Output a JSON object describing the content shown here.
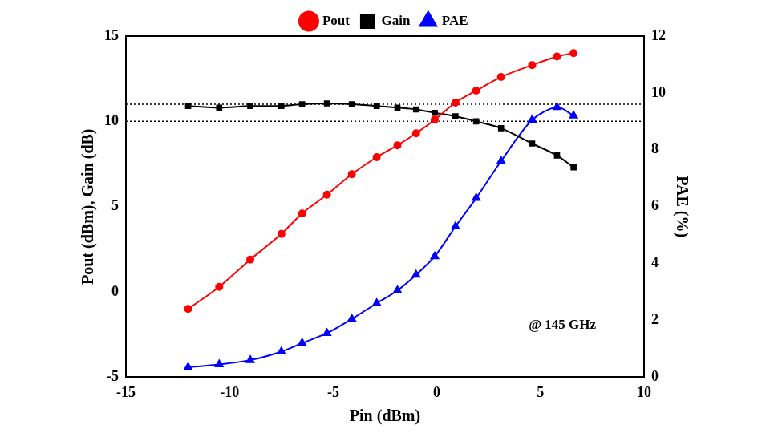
{
  "chart_data": {
    "type": "line",
    "x_label": "Pin (dBm)",
    "y_label": "Pout (dBm), Gain (dB)",
    "y2_label": "PAE (%)",
    "annotation": "@ 145 GHz",
    "x": [
      -12,
      -10.5,
      -9,
      -7.5,
      -6.5,
      -5.3,
      -4.1,
      -2.9,
      -1.9,
      -1.0,
      -0.1,
      0.9,
      1.9,
      3.1,
      4.6,
      5.8,
      6.6
    ],
    "series": [
      {
        "name": "Pout",
        "color": "#ff0000",
        "marker": "circle",
        "axis": "y",
        "values": [
          -1.0,
          0.3,
          1.9,
          3.4,
          4.6,
          5.7,
          6.9,
          7.9,
          8.6,
          9.3,
          10.1,
          11.1,
          11.8,
          12.6,
          13.3,
          13.8,
          14.0
        ]
      },
      {
        "name": "Gain",
        "color": "#000000",
        "marker": "square",
        "axis": "y",
        "values": [
          10.9,
          10.8,
          10.9,
          10.9,
          11.0,
          11.05,
          11.0,
          10.9,
          10.8,
          10.7,
          10.5,
          10.3,
          10.0,
          9.6,
          8.7,
          8.0,
          7.3
        ]
      },
      {
        "name": "PAE",
        "color": "#0000ff",
        "marker": "triangle",
        "axis": "y2",
        "values": [
          0.35,
          0.45,
          0.6,
          0.9,
          1.2,
          1.55,
          2.05,
          2.6,
          3.05,
          3.6,
          4.25,
          5.3,
          6.3,
          7.6,
          9.05,
          9.5,
          9.2
        ]
      }
    ],
    "reference_lines": [
      {
        "value": 11,
        "line_style": "dotted"
      },
      {
        "value": 10,
        "line_style": "dotted"
      }
    ],
    "xlim": [
      -15,
      10
    ],
    "xticks": [
      -15,
      -10,
      -5,
      0,
      5,
      10
    ],
    "ylim": [
      -5,
      15
    ],
    "yticks": [
      -5,
      0,
      5,
      10,
      15
    ],
    "y2lim": [
      0,
      12
    ],
    "y2ticks": [
      0,
      2,
      4,
      6,
      8,
      10,
      12
    ],
    "grid": false,
    "legend": "top"
  }
}
